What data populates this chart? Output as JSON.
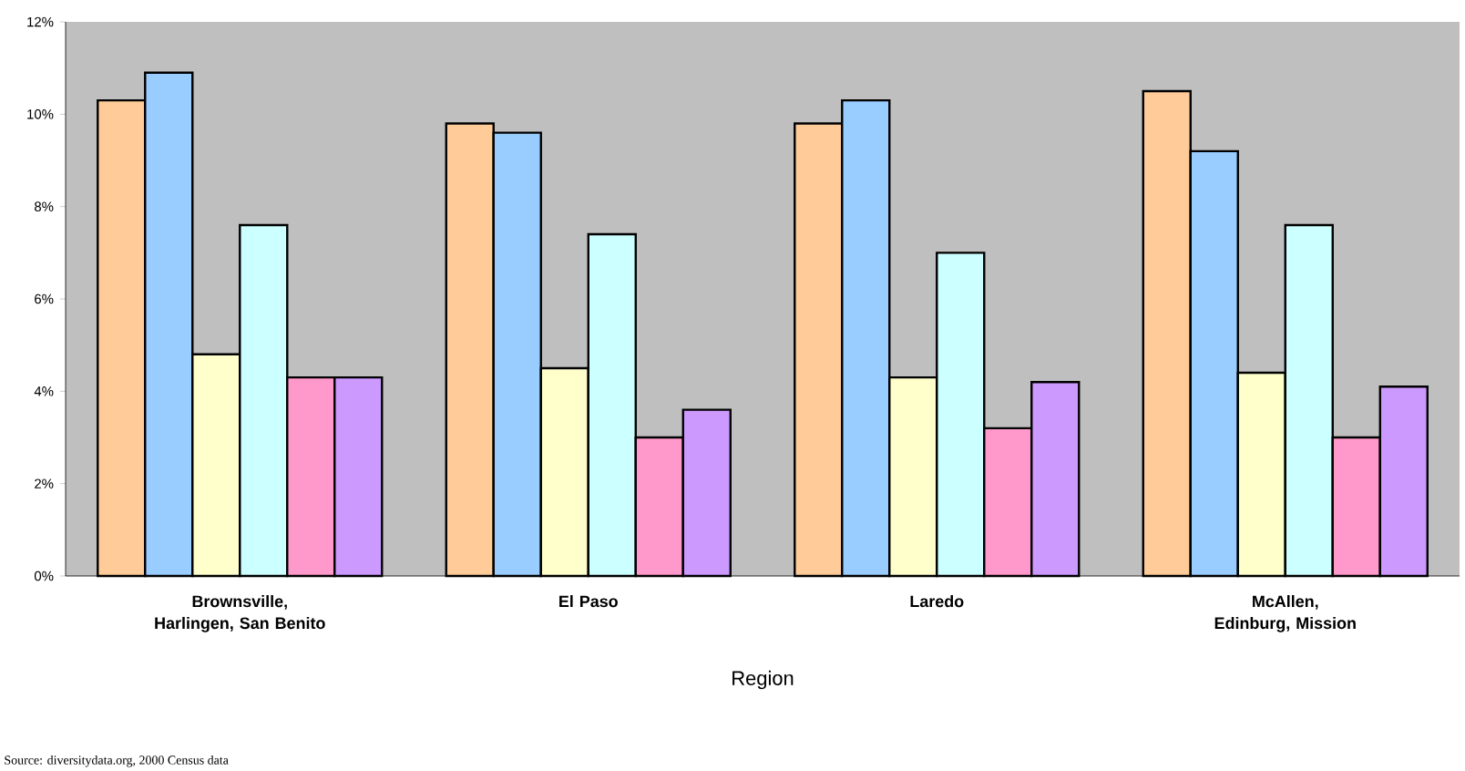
{
  "chart_data": {
    "type": "bar",
    "xlabel": "Region",
    "categories": [
      "Brownsville, Harlingen, San Benito",
      "El Paso",
      "Laredo",
      "McAllen, Edinburg, Mission"
    ],
    "series": [
      {
        "color": "#ffcc99",
        "values": [
          10.3,
          9.8,
          9.8,
          10.5
        ]
      },
      {
        "color": "#99ccff",
        "values": [
          10.9,
          9.6,
          10.3,
          9.2
        ]
      },
      {
        "color": "#ffffcc",
        "values": [
          4.8,
          4.5,
          4.3,
          4.4
        ]
      },
      {
        "color": "#ccffff",
        "values": [
          7.6,
          7.4,
          7.0,
          7.6
        ]
      },
      {
        "color": "#ff99cc",
        "values": [
          4.3,
          3.0,
          3.2,
          3.0
        ]
      },
      {
        "color": "#cc99ff",
        "values": [
          4.3,
          3.6,
          4.2,
          4.1
        ]
      }
    ],
    "ylim": [
      0,
      12
    ],
    "yticks": [
      {
        "value": 0,
        "label": "0%"
      },
      {
        "value": 2,
        "label": "2%"
      },
      {
        "value": 4,
        "label": "4%"
      },
      {
        "value": 6,
        "label": "6%"
      },
      {
        "value": 8,
        "label": "8%"
      },
      {
        "value": 10,
        "label": "10%"
      },
      {
        "value": 12,
        "label": "12%"
      }
    ],
    "grid": false,
    "annotations": [
      "Source: diversitydata.org, 2000 Census data"
    ]
  }
}
